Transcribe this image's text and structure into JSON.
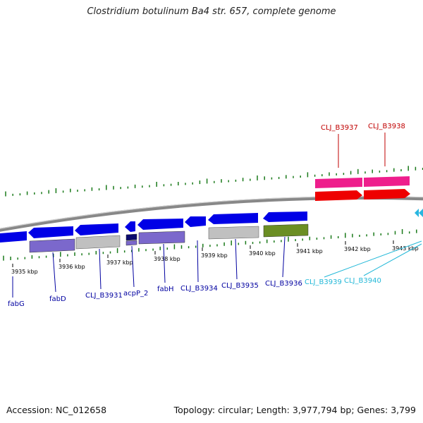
{
  "title": "Clostridium botulinum Ba4 str. 657, complete genome",
  "footer": {
    "accession": "Accession: NC_012658",
    "topology": "Topology: circular; Length: 3,977,794 bp; Genes: 3,799"
  },
  "colors": {
    "backbone": "#808080",
    "forward_gene": "#0000e6",
    "cds_purple": "#7b68cc",
    "cds_gray": "#c0c0c0",
    "cds_olive": "#6b8e23",
    "pink_gene": "#ee1e8c",
    "red_gene": "#ee0000",
    "tick_green": "#1a7a1a",
    "label_blue": "#0000a0",
    "label_cyan": "#22b8d8",
    "label_red": "#c00000"
  },
  "kbp_labels": [
    "3935 kbp",
    "3936 kbp",
    "3937 kbp",
    "3938 kbp",
    "3939 kbp",
    "3940 kbp",
    "3941 kbp",
    "3942 kbp",
    "3943 kbp"
  ],
  "gene_labels": [
    {
      "text": "fabG",
      "color": "blue"
    },
    {
      "text": "fabD",
      "color": "blue"
    },
    {
      "text": "CLJ_B3931",
      "color": "blue"
    },
    {
      "text": "acpP_2",
      "color": "blue"
    },
    {
      "text": "fabH",
      "color": "blue"
    },
    {
      "text": "CLJ_B3934",
      "color": "blue"
    },
    {
      "text": "CLJ_B3935",
      "color": "blue"
    },
    {
      "text": "CLJ_B3936",
      "color": "blue"
    },
    {
      "text": "CLJ_B3939",
      "color": "cyan"
    },
    {
      "text": "CLJ_B3940",
      "color": "cyan"
    },
    {
      "text": "CLJ_B3937",
      "color": "red"
    },
    {
      "text": "CLJ_B3938",
      "color": "red"
    }
  ]
}
